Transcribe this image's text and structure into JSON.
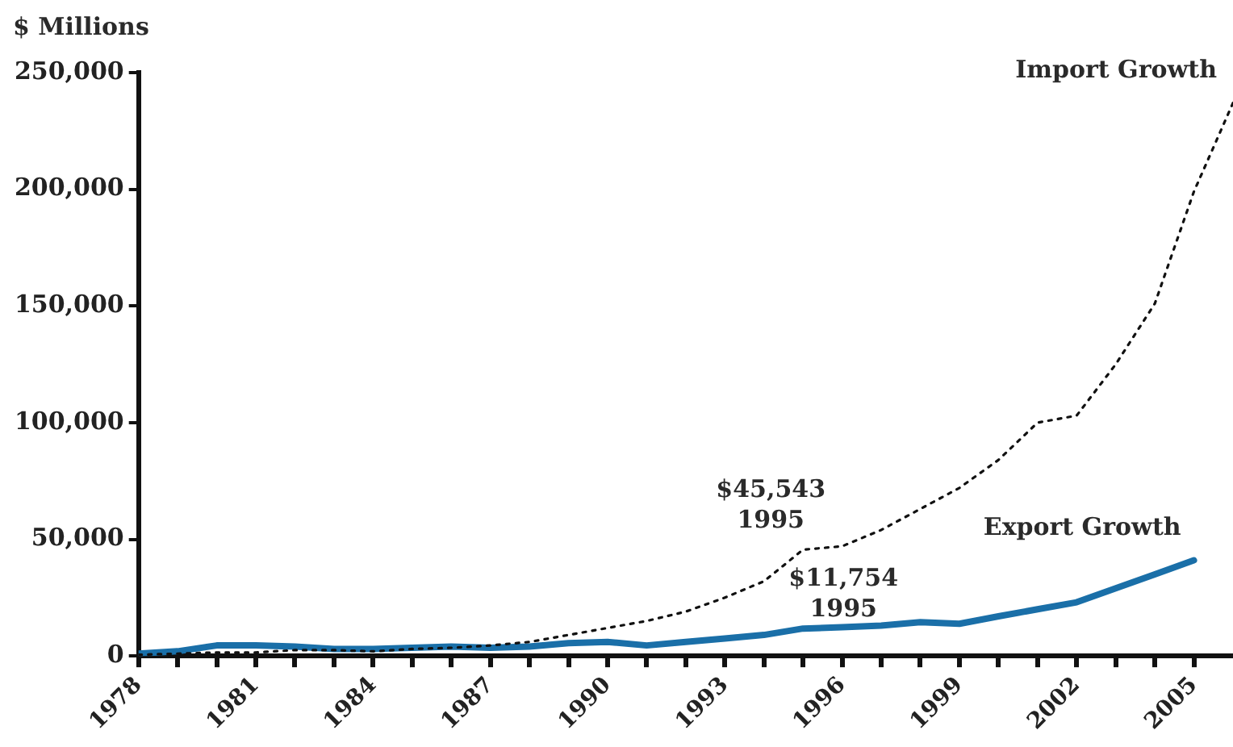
{
  "chart_data": {
    "type": "line",
    "ylabel": "$ Millions",
    "x": [
      1978,
      1979,
      1980,
      1981,
      1982,
      1983,
      1984,
      1985,
      1986,
      1987,
      1988,
      1989,
      1990,
      1991,
      1992,
      1993,
      1994,
      1995,
      1996,
      1997,
      1998,
      1999,
      2000,
      2001,
      2002,
      2003,
      2004,
      2005,
      2006
    ],
    "series": [
      {
        "name": "Import Growth",
        "color": "#111111",
        "line_style": "dotted",
        "values": [
          500,
          1000,
          1500,
          1500,
          2500,
          2500,
          2000,
          3000,
          3500,
          4500,
          6000,
          9000,
          12000,
          15000,
          19000,
          25000,
          32000,
          45543,
          47000,
          54000,
          63000,
          72000,
          84000,
          100000,
          103000,
          125000,
          151000,
          199000,
          237000
        ]
      },
      {
        "name": "Export Growth",
        "color": "#1a6fa8",
        "line_style": "solid",
        "values": [
          1000,
          2000,
          4500,
          4500,
          4000,
          3000,
          3000,
          3500,
          4000,
          3500,
          4000,
          5500,
          6000,
          4500,
          6000,
          7500,
          9000,
          11754,
          12300,
          13000,
          14500,
          13800,
          17000,
          20000,
          23000,
          29000,
          35000,
          41000,
          null
        ]
      }
    ],
    "xlim": [
      1978,
      2006
    ],
    "xticks": [
      1978,
      {
        "value": 1979,
        "label": null
      },
      {
        "value": 1980,
        "label": null
      },
      1981,
      {
        "value": 1982,
        "label": null
      },
      {
        "value": 1983,
        "label": null
      },
      1984,
      {
        "value": 1985,
        "label": null
      },
      {
        "value": 1986,
        "label": null
      },
      1987,
      {
        "value": 1988,
        "label": null
      },
      {
        "value": 1989,
        "label": null
      },
      1990,
      {
        "value": 1991,
        "label": null
      },
      {
        "value": 1992,
        "label": null
      },
      1993,
      {
        "value": 1994,
        "label": null
      },
      {
        "value": 1995,
        "label": null
      },
      1996,
      {
        "value": 1997,
        "label": null
      },
      {
        "value": 1998,
        "label": null
      },
      1999,
      {
        "value": 2000,
        "label": null
      },
      {
        "value": 2001,
        "label": null
      },
      2002,
      {
        "value": 2003,
        "label": null
      },
      {
        "value": 2004,
        "label": null
      },
      2005
    ],
    "ylim": [
      0,
      250000
    ],
    "yticks": [
      0,
      {
        "value": 50000,
        "label": "50,000"
      },
      {
        "value": 100000,
        "label": "100,000"
      },
      {
        "value": 150000,
        "label": "150,000"
      },
      {
        "value": 200000,
        "label": "200,000"
      },
      {
        "value": 250000,
        "label": "250,000"
      }
    ],
    "grid": false,
    "legend": false,
    "marker": "none",
    "annotations": [
      {
        "text": "$45,543\n1995",
        "x": 1995,
        "y": 45543
      },
      {
        "text": "$11,754\n1995",
        "x": 1995,
        "y": 11754
      }
    ]
  }
}
